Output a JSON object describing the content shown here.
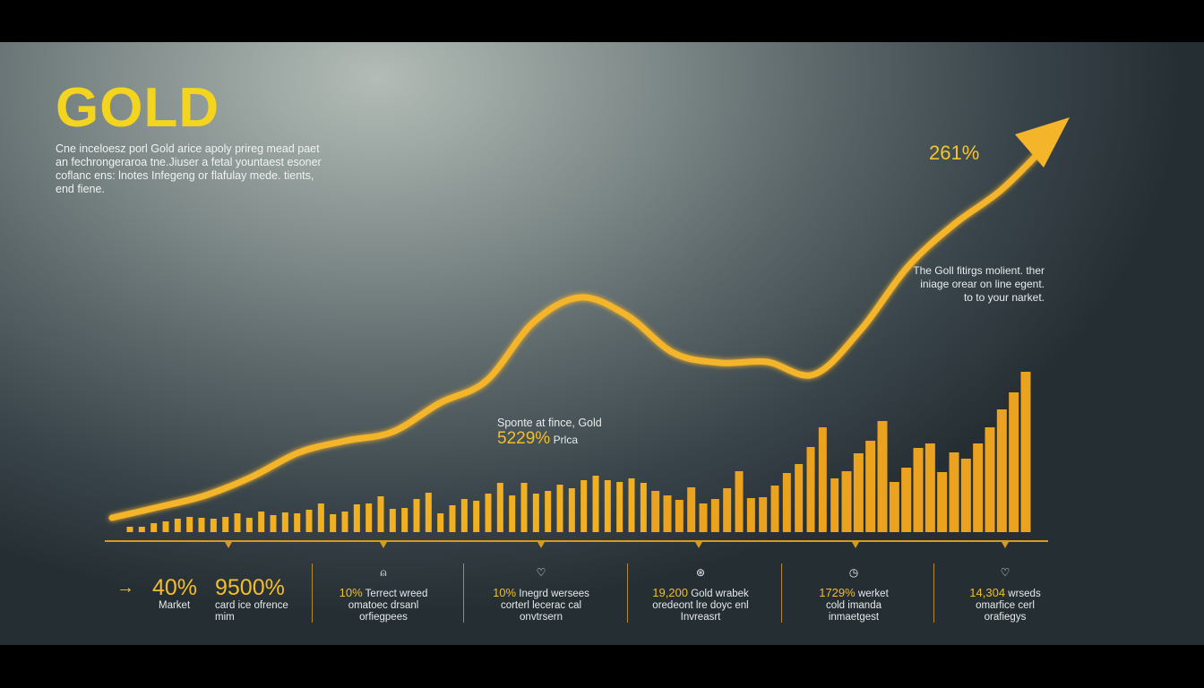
{
  "header": {
    "title": "GOLD",
    "intro": "Cne inceloesz porl Gold arice apoly prireg mead paet an fechrongeraroa tne.Jiuser a fetal yountaest esoner coflanc ens: lnotes Infegeng or flafulay mede. tients, end fiene."
  },
  "annotations": {
    "top_percent": "261%",
    "side_note": "The Goll fitirgs molient. ther iniage orear on line egent. to to your narket.",
    "mid_label": "Sponte at fince, Gold",
    "mid_value": "5229%",
    "mid_suffix": "Prlca"
  },
  "footer": {
    "arrow_icon": "arrow-right-icon",
    "stat1": {
      "value": "40%",
      "label": "Market"
    },
    "stat2": {
      "value": "9500%",
      "label": "card ice ofrence mim"
    },
    "items": [
      {
        "icon": "bell-icon",
        "value": "10%",
        "text1": "Terrect wreed",
        "text2": "omatoec drsanl",
        "text3": "orfiegpees"
      },
      {
        "icon": "heart-icon",
        "value": "10%",
        "text1": "Inegrd wersees",
        "text2": "corterl lecerac cal",
        "text3": "onvtrsern"
      },
      {
        "icon": "globe-icon",
        "value": "19,200",
        "text1": "Gold wrabek",
        "text2": "oredeont lre doyc enl",
        "text3": "Invreasrt"
      },
      {
        "icon": "clock-icon",
        "value": "1729%",
        "text1": "werket",
        "text2": "cold imanda",
        "text3": "inmaetgest"
      },
      {
        "icon": "heart-icon",
        "value": "14,304",
        "text1": "wrseds",
        "text2": "omarfice cerl",
        "text3": "orafiegys"
      }
    ]
  },
  "colors": {
    "accent": "#f2be2c",
    "bar": "#eba21f",
    "line": "#f5b52a",
    "title": "#f3d51f"
  },
  "chart_data": {
    "type": "bar",
    "title": "",
    "xlabel": "",
    "ylabel": "",
    "grid": false,
    "bars": {
      "values": [
        6,
        6,
        10,
        12,
        15,
        17,
        16,
        15,
        17,
        21,
        16,
        23,
        19,
        22,
        21,
        25,
        32,
        20,
        23,
        31,
        32,
        40,
        26,
        27,
        37,
        44,
        21,
        30,
        37,
        35,
        43,
        55,
        41,
        55,
        43,
        46,
        53,
        49,
        58,
        63,
        58,
        56,
        60,
        55,
        46,
        41,
        36,
        50,
        32,
        37,
        49,
        68,
        38,
        39,
        52,
        66,
        76,
        95,
        117,
        60,
        68,
        88,
        102,
        124,
        56,
        72,
        94,
        99,
        67,
        89,
        82,
        99,
        117,
        137,
        156,
        179
      ]
    },
    "line": {
      "type": "line",
      "values": [
        16,
        28,
        41,
        62,
        89,
        102,
        112,
        144,
        169,
        234,
        262,
        242,
        200,
        189,
        190,
        176,
        226,
        296,
        344,
        382,
        434
      ],
      "end_marker": "arrow"
    }
  }
}
